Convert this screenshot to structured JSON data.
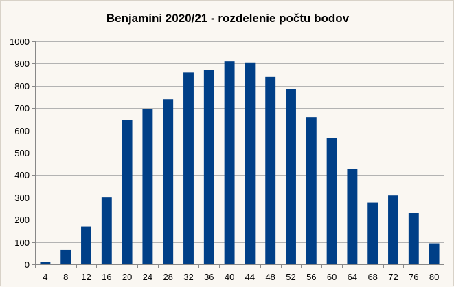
{
  "chart_data": {
    "type": "bar",
    "title": "Benjamíni 2020/21 - rozdelenie počtu bodov",
    "xlabel": "",
    "ylabel": "",
    "categories": [
      "4",
      "8",
      "12",
      "16",
      "20",
      "24",
      "28",
      "32",
      "36",
      "40",
      "44",
      "48",
      "52",
      "56",
      "60",
      "64",
      "68",
      "72",
      "76",
      "80"
    ],
    "values": [
      10,
      65,
      168,
      302,
      648,
      695,
      740,
      860,
      873,
      910,
      905,
      840,
      784,
      660,
      567,
      428,
      276,
      308,
      230,
      94
    ],
    "ylim": [
      0,
      1000
    ],
    "yticks": [
      0,
      100,
      200,
      300,
      400,
      500,
      600,
      700,
      800,
      900,
      1000
    ],
    "grid": true,
    "bar_color": "#003f87",
    "grid_color": "#b3b3b3",
    "legend": "none"
  }
}
